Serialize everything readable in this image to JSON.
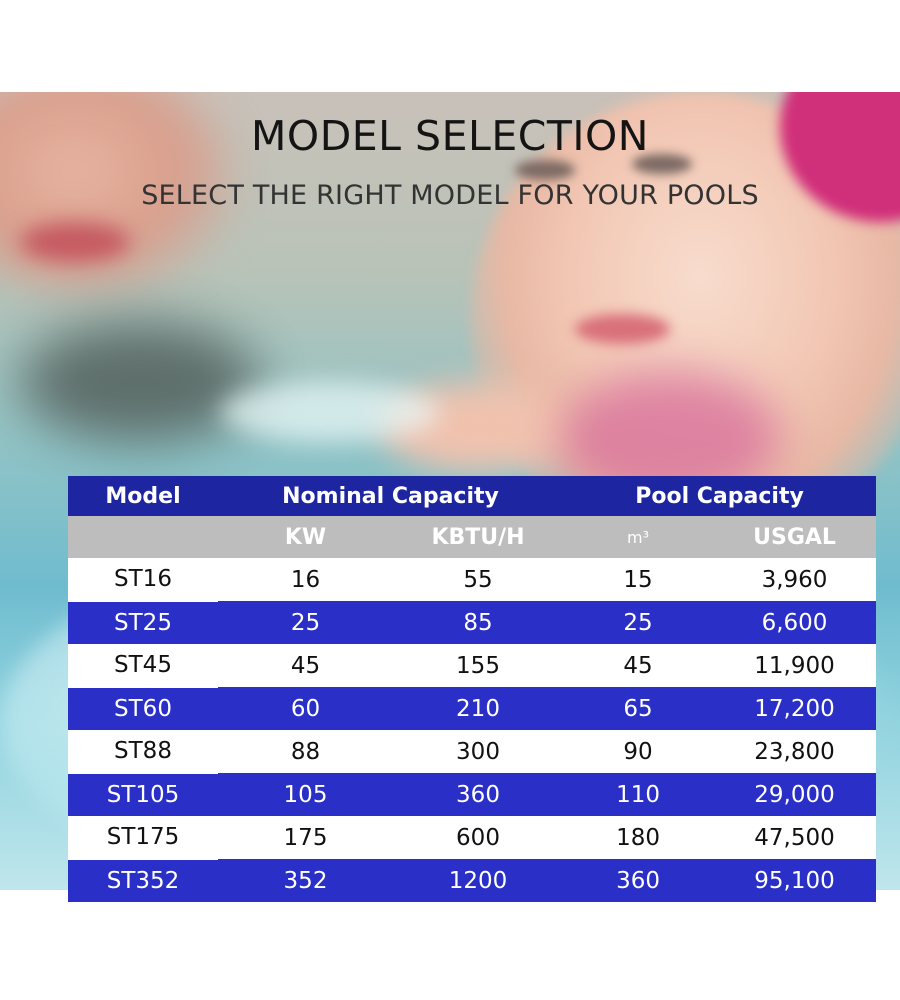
{
  "header": {
    "title": "MODEL SELECTION",
    "subtitle": "SELECT THE RIGHT MODEL FOR YOUR POOLS"
  },
  "table": {
    "group_headers": {
      "model": "Model",
      "nominal_capacity": "Nominal Capacity",
      "pool_capacity": "Pool Capacity"
    },
    "units": [
      "",
      "KW",
      "KBTU/H",
      "m³",
      "USGAL"
    ],
    "rows": [
      [
        "ST16",
        "16",
        "55",
        "15",
        "3,960"
      ],
      [
        "ST25",
        "25",
        "85",
        "25",
        "6,600"
      ],
      [
        "ST45",
        "45",
        "155",
        "45",
        "11,900"
      ],
      [
        "ST60",
        "60",
        "210",
        "65",
        "17,200"
      ],
      [
        "ST88",
        "88",
        "300",
        "90",
        "23,800"
      ],
      [
        "ST105",
        "105",
        "360",
        "110",
        "29,000"
      ],
      [
        "ST175",
        "175",
        "600",
        "180",
        "47,500"
      ],
      [
        "ST352",
        "352",
        "1200",
        "360",
        "95,100"
      ]
    ]
  },
  "colors": {
    "header_blue": "#1d25a0",
    "row_blue": "#2a2fc8",
    "unit_gray": "#bdbdbd"
  }
}
